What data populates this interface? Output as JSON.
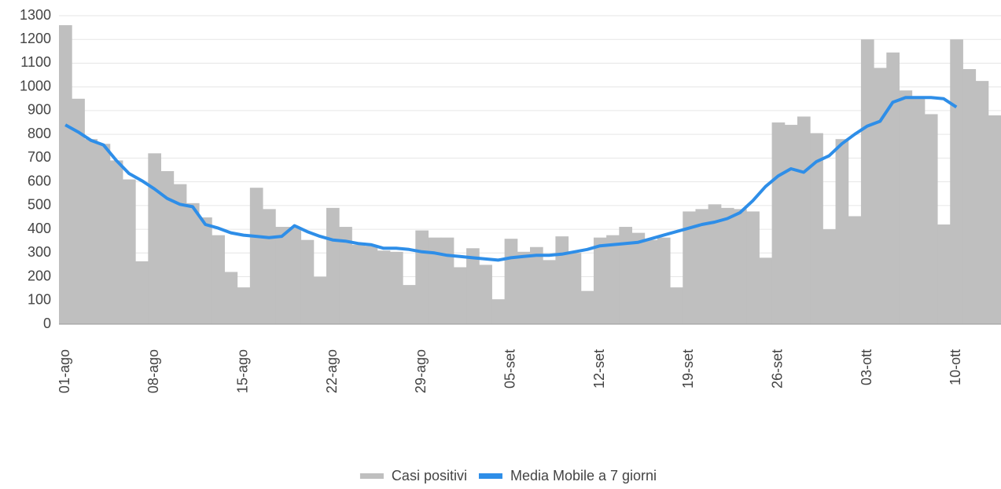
{
  "chart_data": {
    "type": "combo",
    "categories": [
      "01-ago",
      null,
      null,
      null,
      null,
      null,
      null,
      "08-ago",
      null,
      null,
      null,
      null,
      null,
      null,
      "15-ago",
      null,
      null,
      null,
      null,
      null,
      null,
      "22-ago",
      null,
      null,
      null,
      null,
      null,
      null,
      "29-ago",
      null,
      null,
      null,
      null,
      null,
      null,
      "05-set",
      null,
      null,
      null,
      null,
      null,
      null,
      "12-set",
      null,
      null,
      null,
      null,
      null,
      null,
      "19-set",
      null,
      null,
      null,
      null,
      null,
      null,
      "26-set",
      null,
      null,
      null,
      null,
      null,
      null,
      "03-ott",
      null,
      null,
      null,
      null,
      null,
      null,
      "10-ott",
      null,
      null,
      null
    ],
    "series": [
      {
        "name": "Casi positivi",
        "type": "bar",
        "color": "#bfbfbf",
        "values": [
          1260,
          950,
          780,
          760,
          690,
          610,
          265,
          720,
          645,
          590,
          510,
          450,
          375,
          220,
          155,
          575,
          485,
          410,
          410,
          355,
          200,
          490,
          410,
          335,
          330,
          310,
          305,
          165,
          395,
          365,
          365,
          240,
          320,
          250,
          105,
          360,
          305,
          325,
          270,
          370,
          300,
          140,
          365,
          375,
          410,
          385,
          355,
          365,
          155,
          475,
          485,
          505,
          490,
          485,
          475,
          280,
          850,
          840,
          875,
          805,
          400,
          780,
          455,
          1200,
          1080,
          1145,
          985,
          950,
          885,
          420,
          1200,
          1075,
          1025,
          880
        ]
      },
      {
        "name": "Media Mobile a 7 giorni",
        "type": "line",
        "color": "#2e8ee8",
        "values": [
          840,
          810,
          775,
          755,
          690,
          635,
          605,
          570,
          530,
          505,
          495,
          420,
          405,
          385,
          375,
          370,
          365,
          370,
          415,
          390,
          370,
          355,
          350,
          340,
          335,
          320,
          320,
          315,
          305,
          300,
          290,
          285,
          280,
          275,
          270,
          280,
          285,
          290,
          290,
          295,
          305,
          315,
          330,
          335,
          340,
          345,
          360,
          375,
          390,
          405,
          420,
          430,
          445,
          470,
          520,
          580,
          625,
          655,
          640,
          685,
          710,
          760,
          800,
          835,
          855,
          935,
          955,
          955,
          955,
          950,
          915,
          null,
          null,
          null
        ]
      }
    ],
    "ylim": [
      0,
      1300
    ],
    "yticks": [
      0,
      100,
      200,
      300,
      400,
      500,
      600,
      700,
      800,
      900,
      1000,
      1100,
      1200,
      1300
    ],
    "grid": true
  }
}
